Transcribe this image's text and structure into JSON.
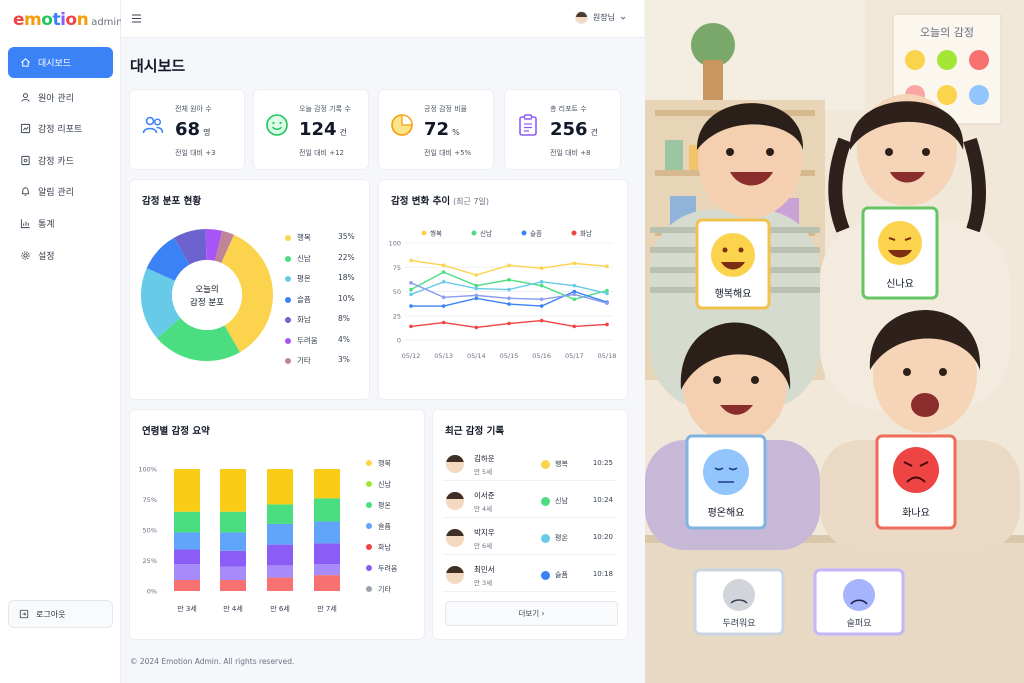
{
  "app": {
    "logo_text": "emotion",
    "logo_sub": "admin"
  },
  "colors": {
    "primary": "#3b82f6",
    "happy": "#fcd34d",
    "excited": "#4ade80",
    "calm": "#67cbe8",
    "sad": "#3b82f6",
    "angry": "#ef4444",
    "fear": "#8b5cf6",
    "other": "#f87171"
  },
  "sidebar": {
    "items": [
      {
        "label": "대시보드",
        "icon": "home-icon",
        "active": true
      },
      {
        "label": "원아 관리",
        "icon": "user-icon"
      },
      {
        "label": "감정 리포트",
        "icon": "chart-doc-icon"
      },
      {
        "label": "감정 카드",
        "icon": "card-icon"
      },
      {
        "label": "알림 관리",
        "icon": "bell-icon"
      },
      {
        "label": "통계",
        "icon": "stats-icon"
      },
      {
        "label": "설정",
        "icon": "gear-icon"
      }
    ],
    "logout_label": "로그아웃"
  },
  "header": {
    "user_name": "원장님"
  },
  "page": {
    "title": "대시보드"
  },
  "stats": [
    {
      "label": "전체 원아 수",
      "value": "68",
      "unit": "명",
      "change": "전일 대비 +3",
      "icon": "users-icon"
    },
    {
      "label": "오늘 감정 기록 수",
      "value": "124",
      "unit": "건",
      "change": "전일 대비 +12",
      "icon": "smile-icon"
    },
    {
      "label": "긍정 감정 비율",
      "value": "72",
      "unit": "%",
      "change": "전일 대비 +5%",
      "icon": "pie-icon"
    },
    {
      "label": "총 리포트 수",
      "value": "256",
      "unit": "건",
      "change": "전일 대비 +8",
      "icon": "clipboard-icon"
    }
  ],
  "distribution": {
    "title": "감정 분포 현황",
    "center_line1": "오늘의",
    "center_line2": "감정 분포",
    "items": [
      {
        "label": "행복",
        "pct": "35%",
        "value": 35,
        "color": "#fcd34d"
      },
      {
        "label": "신남",
        "pct": "22%",
        "value": 22,
        "color": "#4ade80"
      },
      {
        "label": "평온",
        "pct": "18%",
        "value": 18,
        "color": "#67cbe8"
      },
      {
        "label": "슬픔",
        "pct": "10%",
        "value": 10,
        "color": "#3b82f6"
      },
      {
        "label": "화남",
        "pct": "8%",
        "value": 8,
        "color": "#6d63cf"
      },
      {
        "label": "두려움",
        "pct": "4%",
        "value": 4,
        "color": "#a855f7"
      },
      {
        "label": "기타",
        "pct": "3%",
        "value": 3,
        "color": "#c08497"
      }
    ]
  },
  "trend": {
    "title": "감정 변화 추이",
    "subtitle": "(최근 7일)"
  },
  "summary": {
    "title": "연령별 감정 요약"
  },
  "recent": {
    "title": "최근 감정 기록",
    "more_label": "더보기 ›",
    "rows": [
      {
        "name": "김하운",
        "age": "만 5세",
        "emotion": "행복",
        "emotion_color": "#fcd34d",
        "time": "10:25"
      },
      {
        "name": "이서준",
        "age": "만 4세",
        "emotion": "신남",
        "emotion_color": "#4ade80",
        "time": "10:24"
      },
      {
        "name": "박지우",
        "age": "만 6세",
        "emotion": "평온",
        "emotion_color": "#67cbe8",
        "time": "10:20"
      },
      {
        "name": "최민서",
        "age": "만 3세",
        "emotion": "슬픔",
        "emotion_color": "#3b82f6",
        "time": "10:18"
      }
    ]
  },
  "footer": {
    "text": "© 2024 Emotion Admin. All rights reserved."
  },
  "photo": {
    "poster_title": "오늘의 감정",
    "cards": [
      "행복해요",
      "신나요",
      "평온해요",
      "화나요",
      "두려워요",
      "슬퍼요"
    ]
  },
  "chart_data": [
    {
      "type": "pie",
      "title": "감정 분포 현황",
      "categories": [
        "행복",
        "신남",
        "평온",
        "슬픔",
        "화남",
        "두려움",
        "기타"
      ],
      "values": [
        35,
        22,
        18,
        10,
        8,
        4,
        3
      ]
    },
    {
      "type": "line",
      "title": "감정 변화 추이",
      "subtitle": "(최근 7일)",
      "categories": [
        "05/12",
        "05/13",
        "05/14",
        "05/15",
        "05/16",
        "05/17",
        "05/18"
      ],
      "ylim": [
        0,
        100
      ],
      "yticks": [
        0,
        25,
        50,
        75,
        100
      ],
      "legend_position": "top",
      "series": [
        {
          "name": "행복",
          "color": "#fcd34d",
          "values": [
            82,
            77,
            67,
            77,
            74,
            79,
            76
          ]
        },
        {
          "name": "신남",
          "color": "#4ade80",
          "values": [
            52,
            70,
            56,
            62,
            56,
            42,
            51
          ]
        },
        {
          "name": "슬픔",
          "color": "#3b82f6",
          "values": [
            35,
            35,
            43,
            37,
            35,
            50,
            39
          ]
        },
        {
          "name": "화남",
          "color": "#ef4444",
          "values": [
            14,
            18,
            13,
            17,
            20,
            14,
            16
          ]
        },
        {
          "name": "",
          "color": "#67cbe8",
          "values": [
            47,
            60,
            53,
            52,
            60,
            56,
            48
          ]
        },
        {
          "name": "",
          "color": "#8b9df0",
          "values": [
            59,
            44,
            46,
            43,
            42,
            47,
            38
          ]
        }
      ]
    },
    {
      "type": "bar",
      "stacked": true,
      "title": "연령별 감정 요약",
      "categories": [
        "만 3세",
        "만 4세",
        "만 6세",
        "만 7세"
      ],
      "yticks": [
        "0%",
        "25%",
        "50%",
        "75%",
        "100%"
      ],
      "ylim": [
        0,
        100
      ],
      "legend_position": "right",
      "series": [
        {
          "name": "기타",
          "color": "#f87171",
          "values": [
            9,
            9,
            11,
            13
          ]
        },
        {
          "name": "두려움",
          "color": "#a78bfa",
          "values": [
            13,
            11,
            10,
            9
          ]
        },
        {
          "name": "화남",
          "color": "#8b5cf6",
          "values": [
            12,
            13,
            17,
            17
          ]
        },
        {
          "name": "슬픔",
          "color": "#60a5fa",
          "values": [
            14,
            15,
            17,
            18
          ]
        },
        {
          "name": "평온",
          "color": "#4ade80",
          "values": [
            17,
            17,
            16,
            19
          ]
        },
        {
          "name": "신남",
          "color": "#facc15",
          "values": [
            35,
            35,
            29,
            24
          ]
        }
      ],
      "legend": [
        {
          "name": "행복",
          "color": "#fcd34d"
        },
        {
          "name": "신남",
          "color": "#a3e635"
        },
        {
          "name": "평온",
          "color": "#4ade80"
        },
        {
          "name": "슬픔",
          "color": "#60a5fa"
        },
        {
          "name": "화남",
          "color": "#ef4444"
        },
        {
          "name": "두려움",
          "color": "#8b5cf6"
        },
        {
          "name": "기타",
          "color": "#9ca3af"
        }
      ]
    }
  ]
}
